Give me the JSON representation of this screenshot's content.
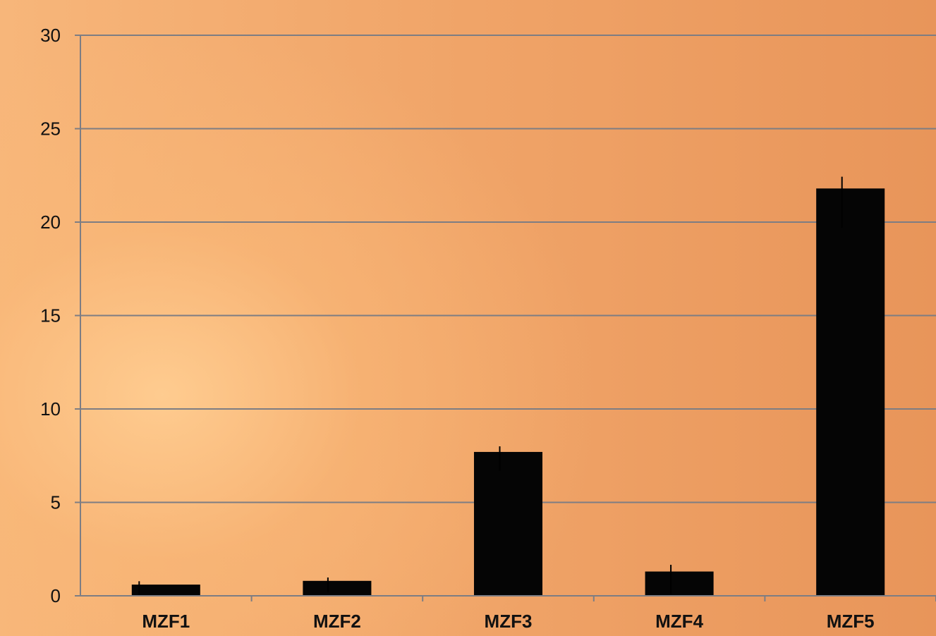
{
  "chart_data": {
    "type": "bar",
    "title": "",
    "xlabel": "",
    "ylabel": "",
    "categories": [
      "MZF1",
      "MZF2",
      "MZF3",
      "MZF4",
      "MZF5"
    ],
    "values": [
      0.6,
      0.8,
      7.7,
      1.3,
      21.8
    ],
    "error_bars": [
      0.6,
      0.6,
      1.0,
      1.2,
      2.1
    ],
    "ylim": [
      0,
      30
    ],
    "yticks": [
      0,
      5,
      10,
      15,
      20,
      25,
      30
    ],
    "grid": true,
    "colors": {
      "bar": "#050505",
      "gridline": "#7d7d83",
      "axis": "#7d7d83",
      "text": "#111111"
    }
  }
}
